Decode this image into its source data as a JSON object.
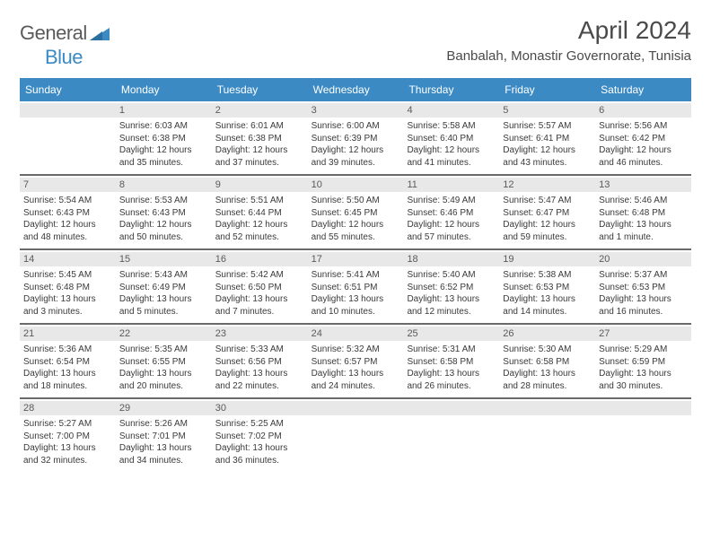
{
  "brand": {
    "part1": "General",
    "part2": "Blue"
  },
  "title": "April 2024",
  "location": "Banbalah, Monastir Governorate, Tunisia",
  "colors": {
    "header_bg": "#3b8ac4",
    "header_text": "#ffffff",
    "daynum_bg": "#e8e8e8",
    "text": "#3a3a3a",
    "sep": "#6a6a6a"
  },
  "day_headers": [
    "Sunday",
    "Monday",
    "Tuesday",
    "Wednesday",
    "Thursday",
    "Friday",
    "Saturday"
  ],
  "weeks": [
    [
      {
        "num": "",
        "sunrise": "",
        "sunset": "",
        "daylight": ""
      },
      {
        "num": "1",
        "sunrise": "Sunrise: 6:03 AM",
        "sunset": "Sunset: 6:38 PM",
        "daylight": "Daylight: 12 hours and 35 minutes."
      },
      {
        "num": "2",
        "sunrise": "Sunrise: 6:01 AM",
        "sunset": "Sunset: 6:38 PM",
        "daylight": "Daylight: 12 hours and 37 minutes."
      },
      {
        "num": "3",
        "sunrise": "Sunrise: 6:00 AM",
        "sunset": "Sunset: 6:39 PM",
        "daylight": "Daylight: 12 hours and 39 minutes."
      },
      {
        "num": "4",
        "sunrise": "Sunrise: 5:58 AM",
        "sunset": "Sunset: 6:40 PM",
        "daylight": "Daylight: 12 hours and 41 minutes."
      },
      {
        "num": "5",
        "sunrise": "Sunrise: 5:57 AM",
        "sunset": "Sunset: 6:41 PM",
        "daylight": "Daylight: 12 hours and 43 minutes."
      },
      {
        "num": "6",
        "sunrise": "Sunrise: 5:56 AM",
        "sunset": "Sunset: 6:42 PM",
        "daylight": "Daylight: 12 hours and 46 minutes."
      }
    ],
    [
      {
        "num": "7",
        "sunrise": "Sunrise: 5:54 AM",
        "sunset": "Sunset: 6:43 PM",
        "daylight": "Daylight: 12 hours and 48 minutes."
      },
      {
        "num": "8",
        "sunrise": "Sunrise: 5:53 AM",
        "sunset": "Sunset: 6:43 PM",
        "daylight": "Daylight: 12 hours and 50 minutes."
      },
      {
        "num": "9",
        "sunrise": "Sunrise: 5:51 AM",
        "sunset": "Sunset: 6:44 PM",
        "daylight": "Daylight: 12 hours and 52 minutes."
      },
      {
        "num": "10",
        "sunrise": "Sunrise: 5:50 AM",
        "sunset": "Sunset: 6:45 PM",
        "daylight": "Daylight: 12 hours and 55 minutes."
      },
      {
        "num": "11",
        "sunrise": "Sunrise: 5:49 AM",
        "sunset": "Sunset: 6:46 PM",
        "daylight": "Daylight: 12 hours and 57 minutes."
      },
      {
        "num": "12",
        "sunrise": "Sunrise: 5:47 AM",
        "sunset": "Sunset: 6:47 PM",
        "daylight": "Daylight: 12 hours and 59 minutes."
      },
      {
        "num": "13",
        "sunrise": "Sunrise: 5:46 AM",
        "sunset": "Sunset: 6:48 PM",
        "daylight": "Daylight: 13 hours and 1 minute."
      }
    ],
    [
      {
        "num": "14",
        "sunrise": "Sunrise: 5:45 AM",
        "sunset": "Sunset: 6:48 PM",
        "daylight": "Daylight: 13 hours and 3 minutes."
      },
      {
        "num": "15",
        "sunrise": "Sunrise: 5:43 AM",
        "sunset": "Sunset: 6:49 PM",
        "daylight": "Daylight: 13 hours and 5 minutes."
      },
      {
        "num": "16",
        "sunrise": "Sunrise: 5:42 AM",
        "sunset": "Sunset: 6:50 PM",
        "daylight": "Daylight: 13 hours and 7 minutes."
      },
      {
        "num": "17",
        "sunrise": "Sunrise: 5:41 AM",
        "sunset": "Sunset: 6:51 PM",
        "daylight": "Daylight: 13 hours and 10 minutes."
      },
      {
        "num": "18",
        "sunrise": "Sunrise: 5:40 AM",
        "sunset": "Sunset: 6:52 PM",
        "daylight": "Daylight: 13 hours and 12 minutes."
      },
      {
        "num": "19",
        "sunrise": "Sunrise: 5:38 AM",
        "sunset": "Sunset: 6:53 PM",
        "daylight": "Daylight: 13 hours and 14 minutes."
      },
      {
        "num": "20",
        "sunrise": "Sunrise: 5:37 AM",
        "sunset": "Sunset: 6:53 PM",
        "daylight": "Daylight: 13 hours and 16 minutes."
      }
    ],
    [
      {
        "num": "21",
        "sunrise": "Sunrise: 5:36 AM",
        "sunset": "Sunset: 6:54 PM",
        "daylight": "Daylight: 13 hours and 18 minutes."
      },
      {
        "num": "22",
        "sunrise": "Sunrise: 5:35 AM",
        "sunset": "Sunset: 6:55 PM",
        "daylight": "Daylight: 13 hours and 20 minutes."
      },
      {
        "num": "23",
        "sunrise": "Sunrise: 5:33 AM",
        "sunset": "Sunset: 6:56 PM",
        "daylight": "Daylight: 13 hours and 22 minutes."
      },
      {
        "num": "24",
        "sunrise": "Sunrise: 5:32 AM",
        "sunset": "Sunset: 6:57 PM",
        "daylight": "Daylight: 13 hours and 24 minutes."
      },
      {
        "num": "25",
        "sunrise": "Sunrise: 5:31 AM",
        "sunset": "Sunset: 6:58 PM",
        "daylight": "Daylight: 13 hours and 26 minutes."
      },
      {
        "num": "26",
        "sunrise": "Sunrise: 5:30 AM",
        "sunset": "Sunset: 6:58 PM",
        "daylight": "Daylight: 13 hours and 28 minutes."
      },
      {
        "num": "27",
        "sunrise": "Sunrise: 5:29 AM",
        "sunset": "Sunset: 6:59 PM",
        "daylight": "Daylight: 13 hours and 30 minutes."
      }
    ],
    [
      {
        "num": "28",
        "sunrise": "Sunrise: 5:27 AM",
        "sunset": "Sunset: 7:00 PM",
        "daylight": "Daylight: 13 hours and 32 minutes."
      },
      {
        "num": "29",
        "sunrise": "Sunrise: 5:26 AM",
        "sunset": "Sunset: 7:01 PM",
        "daylight": "Daylight: 13 hours and 34 minutes."
      },
      {
        "num": "30",
        "sunrise": "Sunrise: 5:25 AM",
        "sunset": "Sunset: 7:02 PM",
        "daylight": "Daylight: 13 hours and 36 minutes."
      },
      {
        "num": "",
        "sunrise": "",
        "sunset": "",
        "daylight": ""
      },
      {
        "num": "",
        "sunrise": "",
        "sunset": "",
        "daylight": ""
      },
      {
        "num": "",
        "sunrise": "",
        "sunset": "",
        "daylight": ""
      },
      {
        "num": "",
        "sunrise": "",
        "sunset": "",
        "daylight": ""
      }
    ]
  ]
}
